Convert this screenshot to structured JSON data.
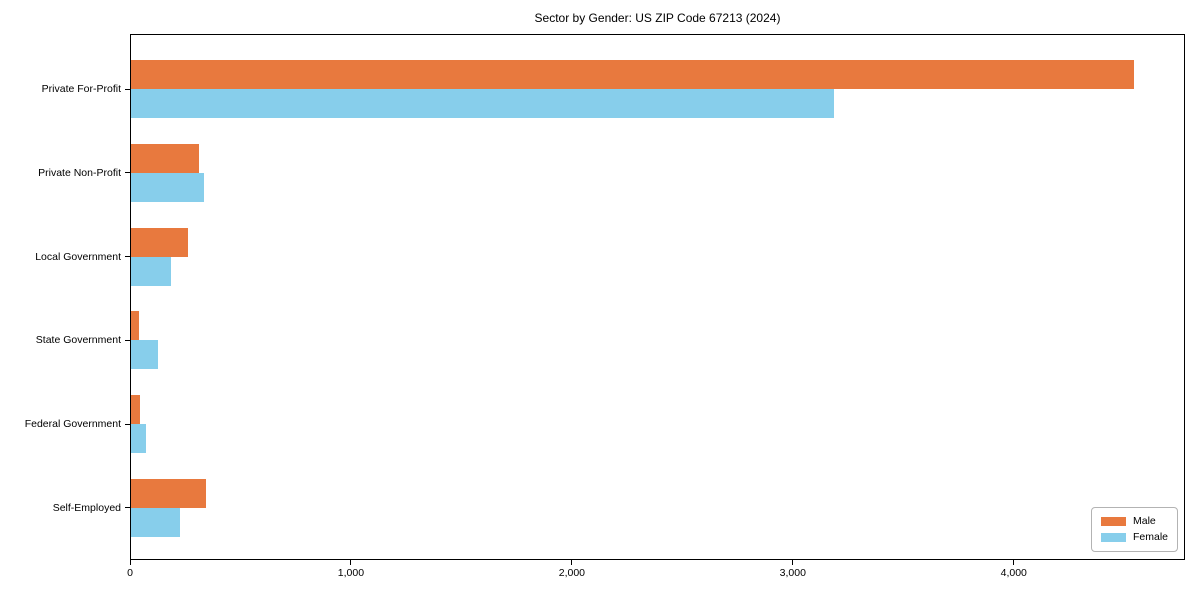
{
  "chart_data": {
    "type": "bar",
    "orientation": "horizontal",
    "title": "Sector by Gender: US ZIP Code 67213 (2024)",
    "categories": [
      "Private For-Profit",
      "Private Non-Profit",
      "Local Government",
      "State Government",
      "Federal Government",
      "Self-Employed"
    ],
    "series": [
      {
        "name": "Male",
        "color": "#e8793e",
        "values": [
          4540,
          310,
          260,
          35,
          40,
          340
        ]
      },
      {
        "name": "Female",
        "color": "#87ceeb",
        "values": [
          3180,
          330,
          180,
          120,
          70,
          220
        ]
      }
    ],
    "xlabel": "",
    "ylabel": "",
    "xlim": [
      0,
      4775
    ],
    "x_ticks": [
      0,
      1000,
      2000,
      3000,
      4000
    ],
    "x_tick_labels": [
      "0",
      "1,000",
      "2,000",
      "3,000",
      "4,000"
    ],
    "grid": false,
    "legend": {
      "position": "lower right",
      "entries": [
        "Male",
        "Female"
      ]
    }
  },
  "colors": {
    "male": "#e8793e",
    "female": "#87ceeb",
    "frame": "#000000",
    "legend_border": "#b3b3b3",
    "background": "#ffffff"
  }
}
